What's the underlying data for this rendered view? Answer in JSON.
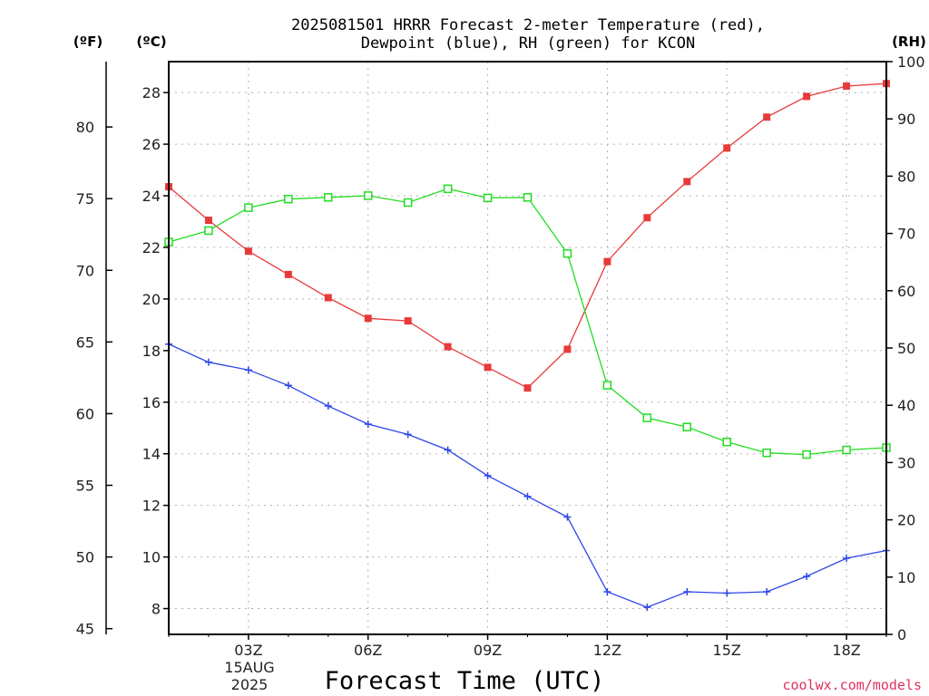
{
  "chart_data": {
    "type": "line",
    "title_line1": "2025081501 HRRR Forecast 2-meter Temperature (red),",
    "title_line2": "Dewpoint (blue), RH (green) for KCON",
    "xlabel": "Forecast Time (UTC)",
    "units": {
      "fahrenheit": "(ºF)",
      "celsius": "(ºC)",
      "rh": "(RH)"
    },
    "x": [
      1,
      2,
      3,
      4,
      5,
      6,
      7,
      8,
      9,
      10,
      11,
      12,
      13,
      14,
      15,
      16,
      17,
      18,
      19
    ],
    "xlim": [
      1,
      19
    ],
    "x_ticks": [
      {
        "x": 3,
        "label": "03Z"
      },
      {
        "x": 6,
        "label": "06Z"
      },
      {
        "x": 9,
        "label": "09Z"
      },
      {
        "x": 12,
        "label": "12Z"
      },
      {
        "x": 15,
        "label": "15Z"
      },
      {
        "x": 18,
        "label": "18Z"
      }
    ],
    "x_date_label": [
      "15AUG",
      "2025"
    ],
    "y_celsius": {
      "lim": [
        7.0,
        29.2
      ],
      "ticks": [
        8,
        10,
        12,
        14,
        16,
        18,
        20,
        22,
        24,
        26,
        28
      ]
    },
    "y_fahrenheit": {
      "ticks": [
        45,
        50,
        55,
        60,
        65,
        70,
        75,
        80
      ]
    },
    "y_rh": {
      "lim": [
        0,
        100
      ],
      "ticks": [
        0,
        10,
        20,
        30,
        40,
        50,
        60,
        70,
        80,
        90,
        100
      ]
    },
    "grid": true,
    "series": [
      {
        "name": "Temperature",
        "color": "#e83a3a",
        "marker": "filled-square",
        "axis": "celsius",
        "values": [
          24.35,
          23.05,
          21.85,
          20.95,
          20.05,
          19.25,
          19.15,
          18.15,
          17.35,
          16.55,
          18.05,
          21.45,
          23.15,
          24.55,
          25.85,
          27.05,
          27.85,
          28.25,
          28.35
        ]
      },
      {
        "name": "Dewpoint",
        "color": "#2d46e8",
        "marker": "plus",
        "axis": "celsius",
        "values": [
          18.25,
          17.55,
          17.25,
          16.65,
          15.85,
          15.15,
          14.75,
          14.15,
          13.15,
          12.35,
          11.55,
          8.65,
          8.05,
          8.65,
          8.6,
          8.65,
          9.25,
          9.95,
          10.25
        ]
      },
      {
        "name": "RH",
        "color": "#22dd22",
        "marker": "open-square",
        "axis": "rh",
        "values": [
          68.5,
          70.5,
          74.5,
          76.0,
          76.3,
          76.6,
          75.4,
          77.8,
          76.2,
          76.3,
          66.5,
          43.5,
          37.8,
          36.2,
          33.6,
          31.7,
          31.4,
          32.2,
          32.6
        ]
      }
    ]
  },
  "credit": "coolwx.com/models"
}
